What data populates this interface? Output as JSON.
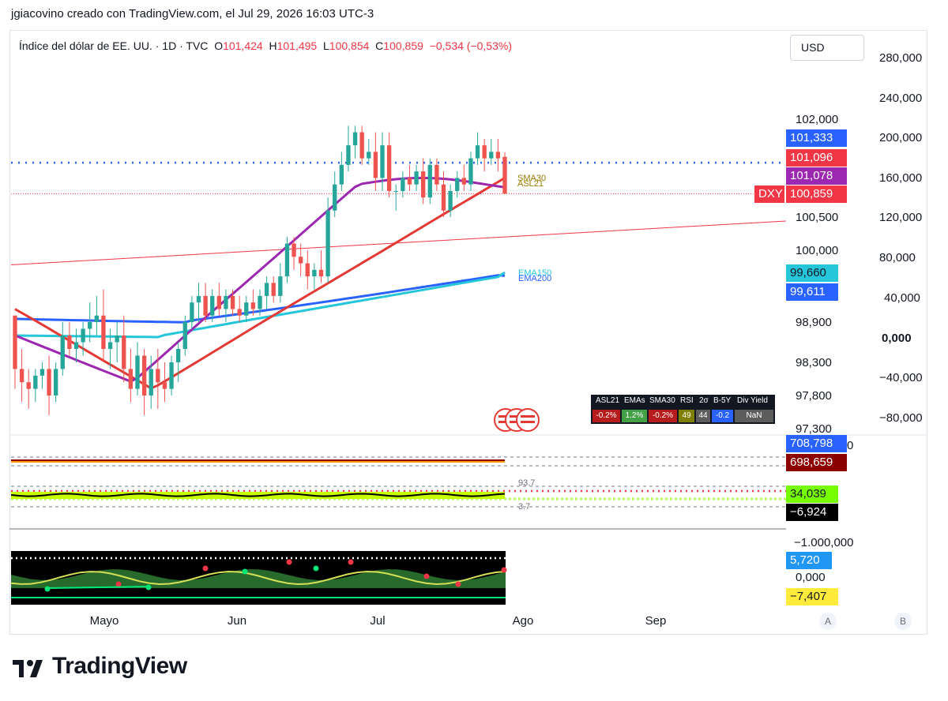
{
  "credit": "jgiacovino creado con TradingView.com, el Jul 29, 2026 16:03 UTC-3",
  "symbol": {
    "name": "Índice del dólar de EE. UU. · 1D · TVC",
    "o_label": "O",
    "o": "101,424",
    "h_label": "H",
    "h": "101,495",
    "l_label": "L",
    "l": "100,854",
    "c_label": "C",
    "c": "100,859",
    "change": "−0,534 (−0,53%)"
  },
  "currency_button": "USD",
  "price_axis": [
    "102,000",
    "100,500",
    "100,000",
    "98,900",
    "98,300",
    "97,800",
    "97,300"
  ],
  "left_scale": [
    "280,000",
    "240,000",
    "200,000",
    "160,000",
    "120,000",
    "80,000",
    "40,000",
    "0,000",
    "−40,000",
    "−80,000"
  ],
  "price_tags": [
    {
      "text": "101,333",
      "color": "#2962ff"
    },
    {
      "text": "101,096",
      "color": "#f23645"
    },
    {
      "text": "101,078",
      "color": "#9c27b0"
    },
    {
      "text": "100,859",
      "color": "#f23645"
    },
    {
      "text": "99,660",
      "color": "#26c6da"
    },
    {
      "text": "99,611",
      "color": "#2962ff"
    }
  ],
  "dxy_label": "DXY",
  "ma_labels": {
    "sma30": "SMA30",
    "asl21": "ASL21",
    "ema150": "EMA150",
    "ema200": "EMA200"
  },
  "stats_table": {
    "headers": [
      "ASL21",
      "EMAs",
      "SMA30",
      "RSI",
      "2σ",
      "B-5Y",
      "Div Yield"
    ],
    "values": [
      "-0.2%",
      "1.2%",
      "-0.2%",
      "49",
      "44",
      "-0.2",
      "NaN"
    ],
    "colors": [
      "#b71c1c",
      "#43a047",
      "#b71c1c",
      "#808000",
      "#5d5d5d",
      "#2962ff",
      "#5d5d5d"
    ]
  },
  "pane2": {
    "tags": [
      {
        "text": "708,798",
        "color": "#2962ff"
      },
      {
        "text": "698,659",
        "color": "#8b0000"
      }
    ],
    "partial_label": "0"
  },
  "pane3": {
    "levels": [
      "93.7",
      "3.7"
    ],
    "tags": [
      {
        "text": "34,039",
        "color": "#76ff03"
      },
      {
        "text": "−6,924",
        "color": "#000000"
      }
    ]
  },
  "pane4": {
    "axis_top": "−1.000,000",
    "tags": [
      {
        "text": "5,720",
        "color": "#2196f3"
      },
      {
        "text": "−7,407",
        "color": "#ffeb3b"
      }
    ],
    "axis_zero": "0,000"
  },
  "x_labels": [
    "Mayo",
    "Jun",
    "Jul",
    "Ago",
    "Sep"
  ],
  "corner_buttons": [
    "A",
    "B"
  ],
  "brand": "TradingView",
  "chart_data": {
    "type": "candlestick",
    "title": "Índice del dólar de EE. UU. · 1D · TVC",
    "ylim": [
      97.3,
      102.0
    ],
    "y_ticks": [
      102.0,
      100.5,
      100.0,
      98.9,
      98.3,
      97.8,
      97.3
    ],
    "x_ticks": [
      "Mayo",
      "Jun",
      "Jul",
      "Ago",
      "Sep"
    ],
    "candles": [
      [
        99.0,
        99.0,
        97.9,
        98.2
      ],
      [
        98.2,
        98.5,
        97.7,
        98.0
      ],
      [
        98.0,
        98.2,
        97.6,
        97.9
      ],
      [
        97.9,
        98.2,
        97.7,
        98.1
      ],
      [
        98.1,
        98.3,
        97.9,
        98.2
      ],
      [
        98.2,
        98.4,
        97.5,
        97.8
      ],
      [
        97.8,
        98.3,
        97.7,
        98.2
      ],
      [
        98.2,
        98.9,
        98.1,
        98.7
      ],
      [
        98.7,
        98.9,
        98.4,
        98.5
      ],
      [
        98.5,
        98.8,
        98.3,
        98.6
      ],
      [
        98.6,
        98.9,
        98.4,
        98.8
      ],
      [
        98.8,
        99.2,
        98.6,
        98.9
      ],
      [
        98.9,
        99.3,
        98.7,
        99.0
      ],
      [
        99.0,
        99.4,
        98.3,
        98.5
      ],
      [
        98.5,
        98.8,
        98.2,
        98.6
      ],
      [
        98.6,
        98.9,
        98.3,
        98.7
      ],
      [
        98.7,
        99.0,
        98.0,
        98.2
      ],
      [
        98.2,
        98.5,
        97.7,
        97.9
      ],
      [
        97.9,
        98.6,
        97.8,
        98.4
      ],
      [
        98.4,
        98.5,
        97.5,
        97.8
      ],
      [
        97.8,
        98.4,
        97.6,
        98.2
      ],
      [
        98.2,
        98.5,
        97.6,
        98.0
      ],
      [
        98.0,
        98.3,
        97.7,
        97.9
      ],
      [
        97.9,
        98.4,
        97.8,
        98.3
      ],
      [
        98.3,
        98.6,
        98.0,
        98.5
      ],
      [
        98.5,
        99.0,
        98.4,
        98.9
      ],
      [
        98.9,
        99.3,
        98.8,
        99.2
      ],
      [
        99.2,
        99.5,
        98.9,
        99.3
      ],
      [
        99.3,
        99.5,
        98.9,
        99.0
      ],
      [
        99.0,
        99.4,
        98.9,
        99.3
      ],
      [
        99.3,
        99.5,
        99.0,
        99.1
      ],
      [
        99.1,
        99.4,
        98.9,
        99.3
      ],
      [
        99.3,
        99.4,
        99.0,
        99.1
      ],
      [
        99.1,
        99.3,
        98.9,
        99.0
      ],
      [
        99.0,
        99.3,
        98.9,
        99.2
      ],
      [
        99.2,
        99.4,
        99.0,
        99.1
      ],
      [
        99.1,
        99.4,
        99.0,
        99.3
      ],
      [
        99.3,
        99.6,
        99.1,
        99.5
      ],
      [
        99.5,
        99.6,
        99.2,
        99.3
      ],
      [
        99.3,
        99.8,
        99.2,
        99.6
      ],
      [
        99.6,
        100.2,
        99.5,
        100.1
      ],
      [
        100.1,
        100.2,
        99.7,
        99.9
      ],
      [
        99.9,
        100.1,
        99.6,
        99.8
      ],
      [
        99.8,
        100.0,
        99.4,
        99.6
      ],
      [
        99.6,
        99.8,
        99.4,
        99.7
      ],
      [
        99.7,
        100.0,
        99.5,
        99.6
      ],
      [
        99.6,
        100.8,
        99.5,
        100.6
      ],
      [
        100.6,
        101.2,
        100.5,
        101.0
      ],
      [
        101.0,
        101.5,
        100.9,
        101.3
      ],
      [
        101.3,
        101.9,
        101.2,
        101.6
      ],
      [
        101.6,
        101.9,
        101.4,
        101.8
      ],
      [
        101.8,
        101.9,
        101.3,
        101.4
      ],
      [
        101.4,
        101.7,
        101.3,
        101.5
      ],
      [
        101.5,
        101.8,
        100.9,
        101.1
      ],
      [
        101.1,
        101.8,
        100.9,
        101.6
      ],
      [
        101.6,
        101.8,
        100.8,
        100.9
      ],
      [
        100.9,
        101.0,
        100.6,
        100.9
      ],
      [
        100.9,
        101.2,
        100.8,
        101.1
      ],
      [
        101.1,
        101.3,
        100.9,
        101.0
      ],
      [
        101.0,
        101.3,
        100.9,
        101.2
      ],
      [
        101.2,
        101.4,
        100.7,
        100.8
      ],
      [
        100.8,
        101.4,
        100.7,
        101.3
      ],
      [
        101.3,
        101.4,
        100.9,
        101.0
      ],
      [
        101.0,
        101.2,
        100.5,
        100.6
      ],
      [
        100.6,
        101.0,
        100.5,
        100.9
      ],
      [
        100.9,
        101.2,
        100.8,
        101.1
      ],
      [
        101.1,
        101.3,
        100.9,
        101.0
      ],
      [
        101.0,
        101.5,
        100.9,
        101.4
      ],
      [
        101.4,
        101.8,
        101.3,
        101.6
      ],
      [
        101.6,
        101.7,
        101.2,
        101.4
      ],
      [
        101.4,
        101.7,
        101.3,
        101.5
      ],
      [
        101.5,
        101.7,
        101.2,
        101.4
      ],
      [
        101.424,
        101.495,
        100.854,
        100.859
      ]
    ],
    "series": [
      {
        "name": "SMA30",
        "last": 101.078
      },
      {
        "name": "ASL21",
        "last": 101.096
      },
      {
        "name": "EMA150",
        "last": 99.66
      },
      {
        "name": "EMA200",
        "last": 99.611
      }
    ],
    "lines": {
      "dotted_level": 101.333,
      "last_close": 100.859
    },
    "colors": {
      "up": "#26a69a",
      "down": "#ef5350",
      "sma30": "#9c27b0",
      "asl21": "#e53935",
      "ema150": "#26c6da",
      "ema200": "#2962ff"
    }
  }
}
